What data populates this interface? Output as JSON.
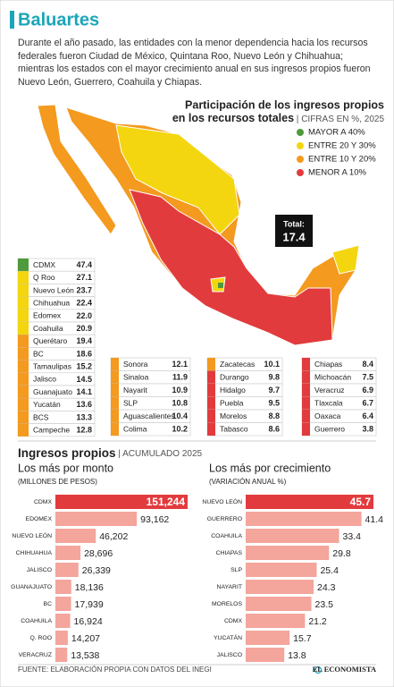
{
  "header": {
    "title": "Baluartes",
    "intro": "Durante el año pasado, las entidades con la menor dependencia hacia los recursos federales fueron Ciudad de México, Quintana Roo, Nuevo León y Chihuahua; mientras los estados con el mayor crecimiento anual en sus ingresos propios fueron Nuevo León, Guerrero, Coahuila y Chiapas."
  },
  "map": {
    "title_line1": "Participación de los ingresos propios",
    "title_line2": "en los recursos totales",
    "units": "CIFRAS EN %, 2025",
    "legend": [
      {
        "label": "MAYOR A 40%",
        "color": "#4e9a3c"
      },
      {
        "label": "ENTRE 20 Y 30%",
        "color": "#f3d60f"
      },
      {
        "label": "ENTRE 10 Y 20%",
        "color": "#f39a1f"
      },
      {
        "label": "MENOR A 10%",
        "color": "#e23b3d"
      }
    ],
    "total_label": "Total:",
    "total": 17.4,
    "columns": [
      [
        {
          "name": "CDMX",
          "value": "47.4",
          "color": "#4e9a3c"
        },
        {
          "name": "Q Roo",
          "value": "27.1",
          "color": "#f3d60f"
        },
        {
          "name": "Nuevo León",
          "value": "23.7",
          "color": "#f3d60f"
        },
        {
          "name": "Chihuahua",
          "value": "22.4",
          "color": "#f3d60f"
        },
        {
          "name": "Edomex",
          "value": "22.0",
          "color": "#f3d60f"
        },
        {
          "name": "Coahuila",
          "value": "20.9",
          "color": "#f3d60f"
        },
        {
          "name": "Querétaro",
          "value": "19.4",
          "color": "#f39a1f"
        },
        {
          "name": "BC",
          "value": "18.6",
          "color": "#f39a1f"
        },
        {
          "name": "Tamaulipas",
          "value": "15.2",
          "color": "#f39a1f"
        },
        {
          "name": "Jalisco",
          "value": "14.5",
          "color": "#f39a1f"
        },
        {
          "name": "Guanajuato",
          "value": "14.1",
          "color": "#f39a1f"
        },
        {
          "name": "Yucatán",
          "value": "13.6",
          "color": "#f39a1f"
        },
        {
          "name": "BCS",
          "value": "13.3",
          "color": "#f39a1f"
        },
        {
          "name": "Campeche",
          "value": "12.8",
          "color": "#f39a1f"
        }
      ],
      [
        {
          "name": "Sonora",
          "value": "12.1",
          "color": "#f39a1f"
        },
        {
          "name": "Sinaloa",
          "value": "11.9",
          "color": "#f39a1f"
        },
        {
          "name": "Nayarit",
          "value": "10.9",
          "color": "#f39a1f"
        },
        {
          "name": "SLP",
          "value": "10.8",
          "color": "#f39a1f"
        },
        {
          "name": "Aguascalientes",
          "value": "10.4",
          "color": "#f39a1f"
        },
        {
          "name": "Colima",
          "value": "10.2",
          "color": "#f39a1f"
        }
      ],
      [
        {
          "name": "Zacatecas",
          "value": "10.1",
          "color": "#f39a1f"
        },
        {
          "name": "Durango",
          "value": "9.8",
          "color": "#e23b3d"
        },
        {
          "name": "Hidalgo",
          "value": "9.7",
          "color": "#e23b3d"
        },
        {
          "name": "Puebla",
          "value": "9.5",
          "color": "#e23b3d"
        },
        {
          "name": "Morelos",
          "value": "8.8",
          "color": "#e23b3d"
        },
        {
          "name": "Tabasco",
          "value": "8.6",
          "color": "#e23b3d"
        }
      ],
      [
        {
          "name": "Chiapas",
          "value": "8.4",
          "color": "#e23b3d"
        },
        {
          "name": "Michoacán",
          "value": "7.5",
          "color": "#e23b3d"
        },
        {
          "name": "Veracruz",
          "value": "6.9",
          "color": "#e23b3d"
        },
        {
          "name": "Tlaxcala",
          "value": "6.7",
          "color": "#e23b3d"
        },
        {
          "name": "Oaxaca",
          "value": "6.4",
          "color": "#e23b3d"
        },
        {
          "name": "Guerrero",
          "value": "3.8",
          "color": "#e23b3d"
        }
      ]
    ]
  },
  "section": {
    "title": "Ingresos propios",
    "subtitle": "ACUMULADO 2025"
  },
  "chart_data": [
    {
      "type": "bar",
      "orientation": "horizontal",
      "title": "Los más por monto",
      "subtitle": "(MILLONES DE PESOS)",
      "categories": [
        "CDMX",
        "EDOMEX",
        "NUEVO LEÓN",
        "CHIHUAHUA",
        "JALISCO",
        "GUANAJUATO",
        "BC",
        "COAHUILA",
        "Q. ROO",
        "VERACRUZ"
      ],
      "values": [
        151244,
        93162,
        46202,
        28696,
        26339,
        18136,
        17939,
        16924,
        14207,
        13538
      ],
      "value_labels": [
        "151,244",
        "93,162",
        "46,202",
        "28,696",
        "26,339",
        "18,136",
        "17,939",
        "16,924",
        "14,207",
        "13,538"
      ],
      "colors": [
        "#e23b3d",
        "#f4a59c",
        "#f4a59c",
        "#f4a59c",
        "#f4a59c",
        "#f4a59c",
        "#f4a59c",
        "#f4a59c",
        "#f4a59c",
        "#f4a59c"
      ]
    },
    {
      "type": "bar",
      "orientation": "horizontal",
      "title": "Los más por crecimiento",
      "subtitle": "(VARIACIÓN ANUAL %)",
      "categories": [
        "NUEVO LEÓN",
        "GUERRERO",
        "COAHUILA",
        "CHIAPAS",
        "SLP",
        "NAYARIT",
        "MORELOS",
        "CDMX",
        "YUCATÁN",
        "JALISCO"
      ],
      "values": [
        45.7,
        41.4,
        33.4,
        29.8,
        25.4,
        24.3,
        23.5,
        21.2,
        15.7,
        13.8
      ],
      "colors": [
        "#e23b3d",
        "#f4a59c",
        "#f4a59c",
        "#f4a59c",
        "#f4a59c",
        "#f4a59c",
        "#f4a59c",
        "#f4a59c",
        "#f4a59c",
        "#f4a59c"
      ]
    }
  ],
  "footer": {
    "source": "FUENTE: ELABORACIÓN PROPIA CON DATOS DEL INEGI",
    "logo": "EL ECONOMISTA"
  }
}
